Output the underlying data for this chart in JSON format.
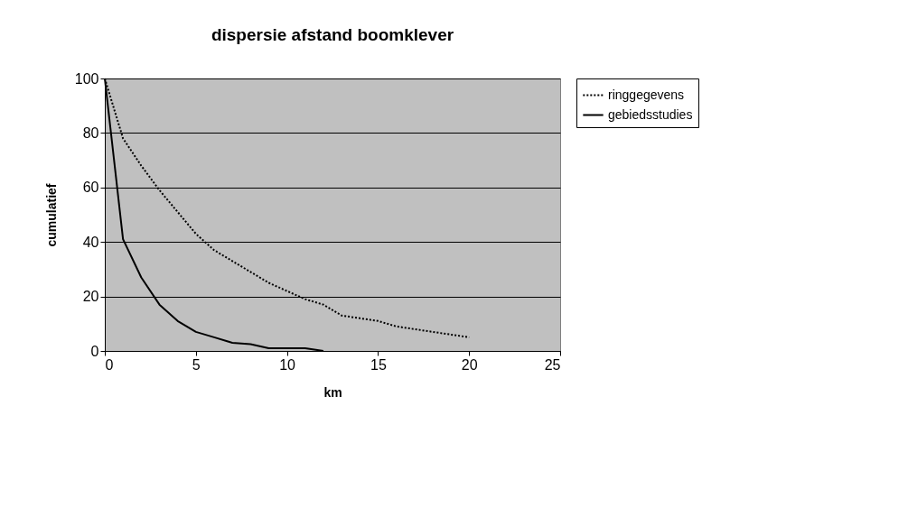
{
  "chart_data": {
    "type": "line",
    "title": "dispersie  afstand boomklever",
    "xlabel": "km",
    "ylabel": "cumulatief",
    "xlim": [
      0,
      25
    ],
    "xticks": [
      0,
      5,
      10,
      15,
      20,
      25
    ],
    "ylim": [
      0,
      100
    ],
    "yticks": [
      0,
      20,
      40,
      60,
      80,
      100
    ],
    "grid": "y",
    "legend": "right",
    "marker": "none",
    "series": [
      {
        "name": "ringgegevens",
        "color": "#000000",
        "line_style": "dotted",
        "x": [
          0,
          1,
          2,
          3,
          4,
          5,
          6,
          7,
          8,
          9,
          10,
          11,
          12,
          13,
          14,
          15,
          16,
          17,
          18,
          19,
          20
        ],
        "values": [
          100,
          78,
          68,
          59,
          51,
          43,
          37,
          33,
          29,
          25,
          22,
          19,
          17,
          13,
          12,
          11,
          9,
          8,
          7,
          6,
          5
        ]
      },
      {
        "name": "gebiedsstudies",
        "color": "#000000",
        "line_style": "solid",
        "x": [
          0,
          1,
          2,
          3,
          4,
          5,
          6,
          7,
          8,
          9,
          10,
          11,
          12
        ],
        "values": [
          100,
          41,
          27,
          17,
          11,
          7,
          5,
          3,
          2.5,
          1,
          1,
          1,
          0
        ]
      }
    ]
  }
}
